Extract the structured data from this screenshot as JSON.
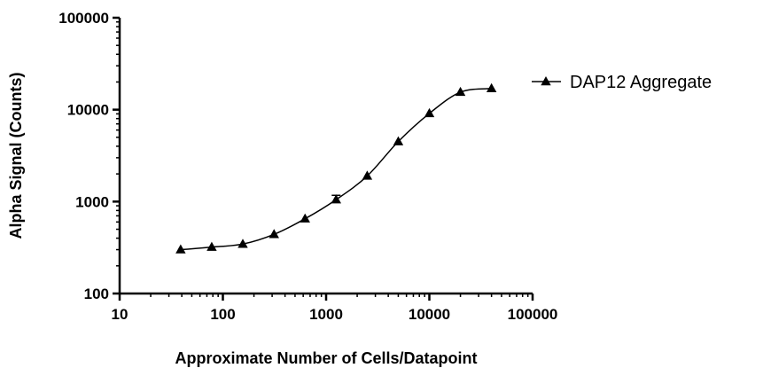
{
  "chart_data": {
    "type": "line",
    "xscale": "log",
    "yscale": "log",
    "xlabel": "Approximate Number of Cells/Datapoint",
    "ylabel": "Alpha Signal (Counts)",
    "xlim": [
      10,
      100000
    ],
    "ylim": [
      100,
      100000
    ],
    "xticks": [
      10,
      100,
      1000,
      10000,
      100000
    ],
    "yticks": [
      100,
      1000,
      10000,
      100000
    ],
    "xtick_labels": [
      "10",
      "100",
      "1000",
      "10000",
      "100000"
    ],
    "ytick_labels": [
      "100",
      "1000",
      "10000",
      "100000"
    ],
    "grid": false,
    "legend_position": "right",
    "series": [
      {
        "name": "DAP12 Aggregate",
        "marker": "triangle",
        "color": "#000000",
        "x": [
          39,
          78,
          156,
          313,
          625,
          1250,
          2500,
          5000,
          10000,
          20000,
          40000
        ],
        "y": [
          300,
          320,
          345,
          440,
          650,
          1050,
          1900,
          4500,
          9100,
          15500,
          17000
        ],
        "error_upper": [
          0,
          0,
          0,
          0,
          0,
          120,
          0,
          0,
          0,
          0,
          0
        ],
        "fit_curve": true
      }
    ]
  }
}
